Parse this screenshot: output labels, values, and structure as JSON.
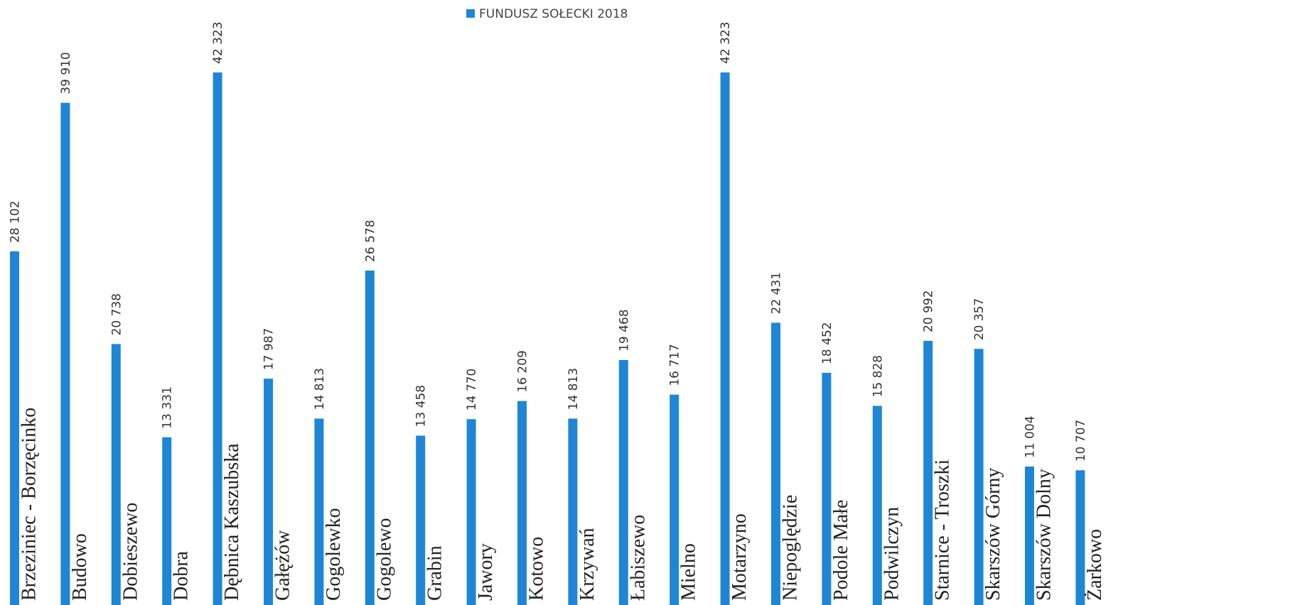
{
  "chart_data": {
    "type": "bar",
    "legend": "FUNDUSZ SOŁECKI 2018",
    "color": "#1f86d6",
    "categories": [
      "Brzeziniec - Borzęcinko",
      "Budowo",
      "Dobieszewo",
      "Dobra",
      "Dębnica Kaszubska",
      "Gałężów",
      "Gogolewko",
      "Gogolewo",
      "Grabin",
      "Jawory",
      "Kotowo",
      "Krzywań",
      "Łabiszewo",
      "Mielno",
      "Motarzyno",
      "Niepoględzie",
      "Podole Małe",
      "Podwilczyn",
      "Starnice - Troszki",
      "Skarszów Górny",
      "Skarszów Dolny",
      "Żarkowo"
    ],
    "values": [
      28102,
      39910,
      20738,
      13331,
      42323,
      17987,
      14813,
      26578,
      13458,
      14770,
      16209,
      14813,
      19468,
      16717,
      42323,
      22431,
      18452,
      15828,
      20992,
      20357,
      11004,
      10707
    ],
    "value_labels": [
      "28 102",
      "39 910",
      "20 738",
      "13 331",
      "42 323",
      "17 987",
      "14 813",
      "26 578",
      "13 458",
      "14 770",
      "16 209",
      "14 813",
      "19 468",
      "16 717",
      "42 323",
      "22 431",
      "18 452",
      "15 828",
      "20 992",
      "20 357",
      "11 004",
      "10 707"
    ]
  }
}
